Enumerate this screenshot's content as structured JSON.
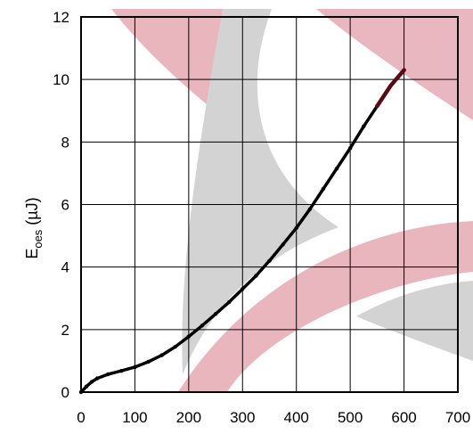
{
  "chart_data": {
    "type": "line",
    "title": "",
    "xlabel": "",
    "ylabel_main": "E",
    "ylabel_sub": "oes",
    "ylabel_unit": "(µJ)",
    "xlim": [
      0,
      700
    ],
    "ylim": [
      0,
      12
    ],
    "x_ticks": [
      0,
      100,
      200,
      300,
      400,
      500,
      600,
      700
    ],
    "y_ticks": [
      0,
      2,
      4,
      6,
      8,
      10,
      12
    ],
    "grid": true,
    "series": [
      {
        "color": "#000000",
        "end_color": "#5a0a12",
        "x": [
          0,
          10,
          20,
          30,
          50,
          75,
          100,
          125,
          150,
          175,
          200,
          225,
          250,
          275,
          300,
          325,
          350,
          375,
          400,
          425,
          450,
          475,
          500,
          525,
          550,
          575,
          600
        ],
        "y": [
          0,
          0.18,
          0.33,
          0.44,
          0.57,
          0.68,
          0.8,
          0.97,
          1.18,
          1.45,
          1.78,
          2.13,
          2.5,
          2.88,
          3.3,
          3.72,
          4.2,
          4.72,
          5.25,
          5.85,
          6.5,
          7.15,
          7.8,
          8.5,
          9.15,
          9.8,
          10.3
        ]
      }
    ]
  },
  "watermark": {
    "pink": "#d4707f",
    "gray": "#a8a8a8"
  }
}
